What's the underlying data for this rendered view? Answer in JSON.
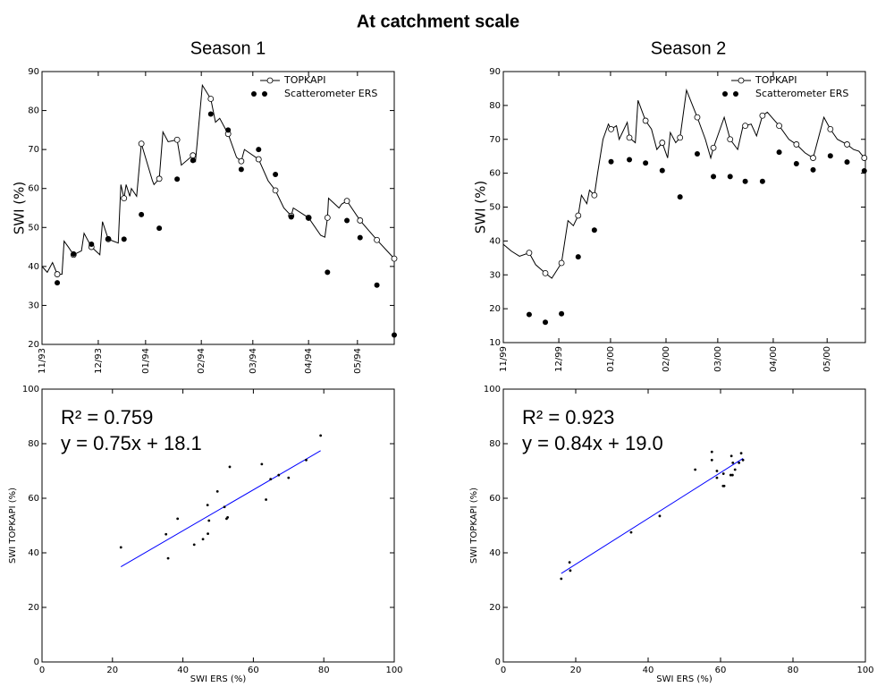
{
  "title": "At catchment scale",
  "chart_data": [
    {
      "type": "line",
      "title": "Season 1",
      "ylabel": "SWI (%)",
      "xlim": [
        0,
        6.7
      ],
      "xticks": [
        {
          "value": 0,
          "label": "11/93"
        },
        {
          "value": 1.07,
          "label": "12/93"
        },
        {
          "value": 1.97,
          "label": "01/94"
        },
        {
          "value": 3.03,
          "label": "02/94"
        },
        {
          "value": 4.01,
          "label": "03/94"
        },
        {
          "value": 5.07,
          "label": "04/94"
        },
        {
          "value": 6.0,
          "label": "05/94"
        }
      ],
      "ylim": [
        20,
        90
      ],
      "yticks": [
        20,
        30,
        40,
        50,
        60,
        70,
        80,
        90
      ],
      "legend": "upper right",
      "series": [
        {
          "name": "TOPKAPI",
          "color": "#000000",
          "x": [
            0,
            0.1,
            0.2,
            0.29,
            0.38,
            0.42,
            0.5,
            0.6,
            0.75,
            0.8,
            0.94,
            1.1,
            1.15,
            1.26,
            1.45,
            1.5,
            1.56,
            1.6,
            1.67,
            1.7,
            1.8,
            1.89,
            2.1,
            2.13,
            2.23,
            2.3,
            2.4,
            2.57,
            2.65,
            2.87,
            2.92,
            3.05,
            3.21,
            3.3,
            3.38,
            3.54,
            3.7,
            3.79,
            3.85,
            4.12,
            4.3,
            4.44,
            4.6,
            4.74,
            4.78,
            5.07,
            5.3,
            5.38,
            5.43,
            5.45,
            5.65,
            5.7,
            5.8,
            6.05,
            6.37,
            6.7
          ],
          "values": [
            40,
            38.5,
            41,
            38,
            38,
            46.5,
            45,
            43,
            44,
            48.5,
            45,
            43,
            51.5,
            47,
            46,
            61,
            57.5,
            61,
            58,
            60,
            58,
            71.5,
            62,
            61,
            62.5,
            74.5,
            72,
            72.5,
            66,
            68.5,
            67,
            86.5,
            83,
            77,
            78,
            74,
            68,
            67,
            70,
            67.5,
            62,
            59.5,
            55,
            53,
            55,
            52.5,
            48,
            47.5,
            52.5,
            57.5,
            55,
            56,
            56.8,
            51.8,
            46.8,
            42
          ],
          "marker_x": [
            0.29,
            0.6,
            0.94,
            1.26,
            1.56,
            1.89,
            2.23,
            2.57,
            2.87,
            3.21,
            3.54,
            3.79,
            4.12,
            4.44,
            4.74,
            5.07,
            5.43,
            5.8,
            6.05,
            6.37,
            6.7
          ],
          "marker_values": [
            38,
            43,
            45,
            47,
            57.5,
            71.5,
            62.5,
            72.5,
            68.5,
            83,
            74,
            67,
            67.5,
            59.5,
            53,
            52.5,
            52.5,
            56.8,
            51.8,
            46.8,
            42
          ]
        },
        {
          "name": "Scatterometer ERS",
          "color": "#000000",
          "x": [
            0.29,
            0.6,
            0.94,
            1.26,
            1.56,
            1.89,
            2.23,
            2.57,
            2.87,
            3.21,
            3.54,
            3.79,
            4.12,
            4.44,
            4.74,
            5.07,
            5.43,
            5.8,
            6.05,
            6.37,
            6.7
          ],
          "values": [
            35.8,
            43.2,
            45.7,
            47.1,
            47.0,
            53.3,
            49.8,
            62.4,
            67.2,
            79.1,
            75.0,
            64.9,
            70.0,
            63.6,
            52.7,
            52.4,
            38.5,
            51.8,
            47.4,
            35.2,
            22.4
          ]
        }
      ]
    },
    {
      "type": "line",
      "title": "Season 2",
      "ylabel": "SWI (%)",
      "xlim": [
        0,
        6.72
      ],
      "xticks": [
        {
          "value": 0,
          "label": "11/99"
        },
        {
          "value": 1.03,
          "label": "12/99"
        },
        {
          "value": 1.99,
          "label": "01/00"
        },
        {
          "value": 3.02,
          "label": "02/00"
        },
        {
          "value": 3.98,
          "label": "03/00"
        },
        {
          "value": 5.01,
          "label": "04/00"
        },
        {
          "value": 6.01,
          "label": "05/00"
        }
      ],
      "ylim": [
        10,
        90
      ],
      "yticks": [
        10,
        20,
        30,
        40,
        50,
        60,
        70,
        80,
        90
      ],
      "legend": "upper right",
      "series": [
        {
          "name": "TOPKAPI",
          "color": "#000000",
          "x": [
            0,
            0.15,
            0.3,
            0.48,
            0.6,
            0.78,
            0.9,
            1.08,
            1.2,
            1.3,
            1.39,
            1.45,
            1.55,
            1.6,
            1.69,
            1.75,
            1.85,
            1.95,
            2.0,
            2.1,
            2.15,
            2.3,
            2.34,
            2.45,
            2.5,
            2.64,
            2.75,
            2.85,
            2.95,
            3.05,
            3.1,
            3.2,
            3.28,
            3.4,
            3.6,
            3.75,
            3.85,
            3.9,
            4.1,
            4.21,
            4.35,
            4.45,
            4.49,
            4.6,
            4.7,
            4.81,
            4.9,
            5.12,
            5.3,
            5.44,
            5.6,
            5.75,
            5.95,
            6.07,
            6.2,
            6.38,
            6.5,
            6.6,
            6.7
          ],
          "values": [
            39,
            37,
            35.5,
            36.5,
            33,
            30.5,
            29,
            33.5,
            46,
            44.5,
            47.5,
            53.5,
            51,
            55,
            53.5,
            60,
            70,
            74.5,
            73,
            74,
            70,
            75,
            70.5,
            69,
            81.5,
            75.5,
            73,
            67,
            69,
            64.5,
            72,
            69,
            70.5,
            84.5,
            76.5,
            70,
            64.5,
            67.5,
            76.5,
            70,
            67,
            74,
            74,
            74.5,
            71,
            77,
            78,
            74,
            70,
            68.5,
            66,
            64.5,
            76.5,
            73,
            70,
            68.5,
            67,
            66.5,
            64.5
          ],
          "marker_x": [
            0.48,
            0.78,
            1.08,
            1.39,
            1.69,
            2.0,
            2.34,
            2.64,
            2.95,
            3.28,
            3.6,
            3.9,
            4.21,
            4.49,
            4.81,
            5.12,
            5.44,
            5.75,
            6.07,
            6.38,
            6.7
          ],
          "marker_values": [
            36.5,
            30.5,
            33.5,
            47.5,
            53.5,
            73,
            70.5,
            75.5,
            69,
            70.5,
            76.5,
            67.5,
            70,
            74,
            77,
            74,
            68.5,
            64.5,
            73,
            68.5,
            64.5
          ]
        },
        {
          "name": "Scatterometer ERS",
          "color": "#000000",
          "x": [
            0.48,
            0.78,
            1.08,
            1.39,
            1.69,
            2.0,
            2.34,
            2.64,
            2.95,
            3.28,
            3.6,
            3.9,
            4.21,
            4.49,
            4.81,
            5.12,
            5.44,
            5.75,
            6.07,
            6.38,
            6.7
          ],
          "values": [
            18.3,
            16,
            18.5,
            35.3,
            43.2,
            63.4,
            64,
            63,
            60.8,
            53,
            65.7,
            59,
            59,
            57.6,
            57.6,
            66.2,
            62.8,
            61,
            65.1,
            63.3,
            60.7
          ]
        }
      ]
    },
    {
      "type": "scatter",
      "xlabel": "SWI ERS (%)",
      "ylabel": "SWI TOPKAPI (%)",
      "xlim": [
        0,
        100
      ],
      "xticks": [
        0,
        20,
        40,
        60,
        80,
        100
      ],
      "ylim": [
        0,
        100
      ],
      "yticks": [
        0,
        20,
        40,
        60,
        80,
        100
      ],
      "annotations": [
        "R² = 0.759",
        "y = 0.75x + 18.1"
      ],
      "fit": {
        "color": "#0000ff",
        "slope": 0.75,
        "intercept": 18.1
      },
      "series": [
        {
          "color": "#000000",
          "x": [
            35.8,
            43.2,
            45.7,
            47.1,
            47.0,
            53.3,
            49.8,
            62.4,
            67.2,
            79.1,
            75.0,
            64.9,
            70.0,
            63.6,
            52.7,
            52.4,
            38.5,
            51.8,
            47.4,
            35.2,
            22.4
          ],
          "values": [
            38,
            43,
            45,
            47,
            57.5,
            71.5,
            62.5,
            72.5,
            68.5,
            83,
            74,
            67,
            67.5,
            59.5,
            53,
            52.5,
            52.5,
            56.8,
            51.8,
            46.8,
            42
          ]
        }
      ]
    },
    {
      "type": "scatter",
      "xlabel": "SWI ERS (%)",
      "ylabel": "SWI TOPKAPI (%)",
      "xlim": [
        0,
        100
      ],
      "xticks": [
        0,
        20,
        40,
        60,
        80,
        100
      ],
      "ylim": [
        0,
        100
      ],
      "yticks": [
        0,
        20,
        40,
        60,
        80,
        100
      ],
      "annotations": [
        "R² = 0.923",
        "y = 0.84x + 19.0"
      ],
      "fit": {
        "color": "#0000ff",
        "slope": 0.84,
        "intercept": 19.0
      },
      "series": [
        {
          "color": "#000000",
          "x": [
            18.3,
            16,
            18.5,
            35.3,
            43.2,
            63.4,
            64,
            63,
            60.8,
            53,
            65.7,
            59,
            59,
            57.6,
            57.6,
            66.2,
            62.8,
            61,
            65.1,
            63.3,
            60.7
          ],
          "values": [
            36.5,
            30.5,
            33.5,
            47.5,
            53.5,
            73,
            70.5,
            75.5,
            69,
            70.5,
            76.5,
            67.5,
            70,
            74,
            77,
            74,
            68.5,
            64.5,
            73,
            68.5,
            64.5
          ]
        }
      ]
    }
  ]
}
